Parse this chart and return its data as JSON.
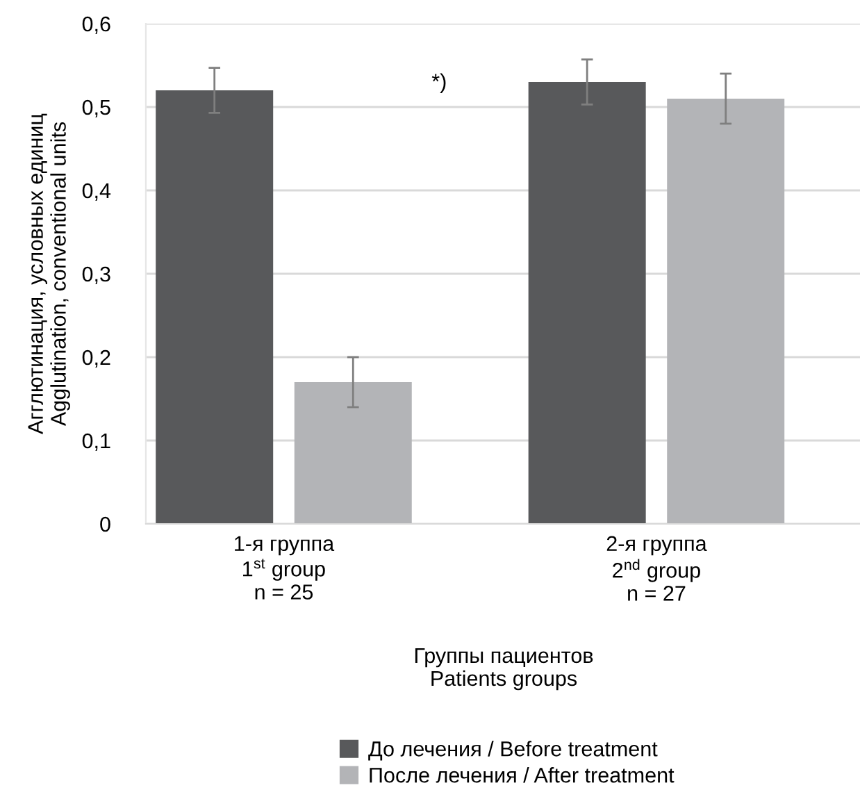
{
  "chart_data": {
    "type": "bar",
    "ylabel": "Агглютинация, условных единиц\nAgglutination, conventional units",
    "xlabel": "Группы пациентов\nPatients groups",
    "categories": [
      "1-я группа\n1$^{st}$ group\nn = 25",
      "2-я группа\n2$^{nd}$ group\nn = 27"
    ],
    "series": [
      {
        "name": "До лечения / Before treatment",
        "color": "#58595b",
        "values": [
          0.52,
          0.53
        ],
        "errors": [
          0.027,
          0.027
        ]
      },
      {
        "name": "После лечения / After treatment",
        "color": "#b3b4b7",
        "values": [
          0.17,
          0.51
        ],
        "errors": [
          0.03,
          0.03
        ]
      }
    ],
    "ylim": [
      0,
      0.6
    ],
    "yticks": [
      0,
      {
        "value": 0.1,
        "label": "0,1"
      },
      {
        "value": 0.2,
        "label": "0,2"
      },
      {
        "value": 0.3,
        "label": "0,3"
      },
      {
        "value": 0.4,
        "label": "0,4"
      },
      {
        "value": 0.5,
        "label": "0,5"
      },
      {
        "value": 0.6,
        "label": "0,6"
      }
    ],
    "grid": "y",
    "legend": "bottom",
    "annotations": [
      "*)"
    ]
  }
}
